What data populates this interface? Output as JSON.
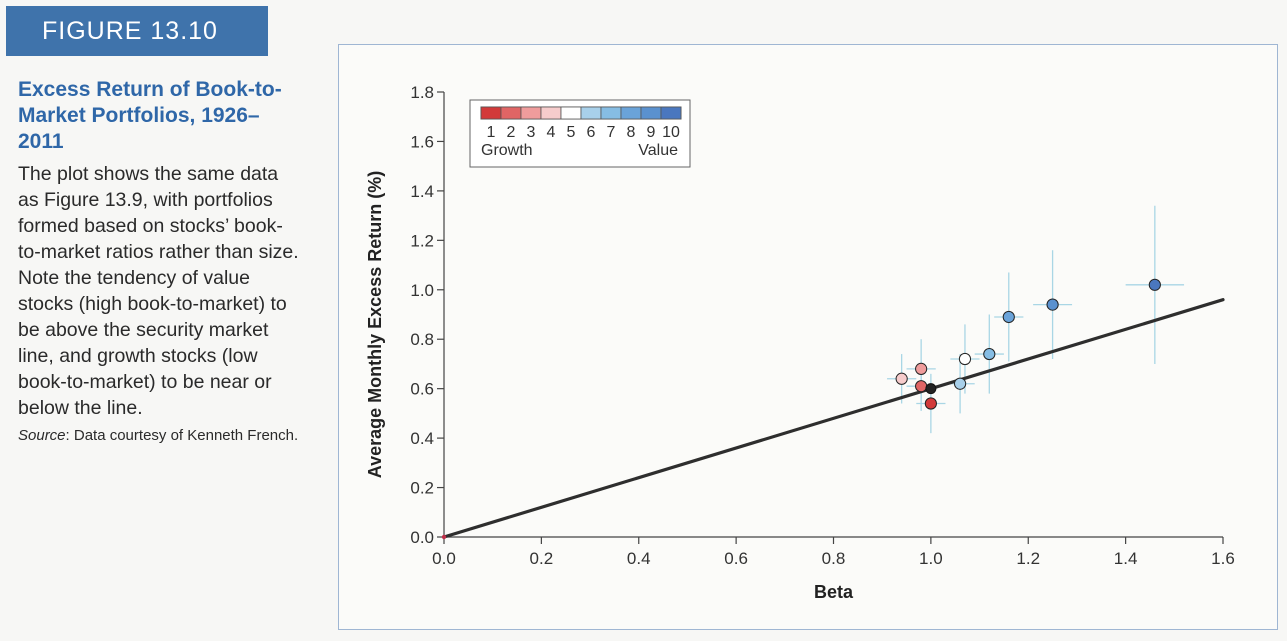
{
  "figure": {
    "label": "FIGURE 13.10",
    "title": "Excess Return of Book-to-Market Portfolios, 1926–2011",
    "caption": "The plot shows the same data as Figure 13.9, with portfolios formed based on stocks’ book-to-market ratios rather than size. Note the tendency of value stocks (high book-to-market) to be above the security market line, and growth stocks (low book-to-market) to be near or below the line.",
    "source_label": "Source",
    "source_text": ": Data courtesy of Kenneth French."
  },
  "chart_data": {
    "type": "scatter",
    "xlabel": "Beta",
    "ylabel": "Average Monthly Excess Return (%)",
    "xlim": [
      0.0,
      1.6
    ],
    "ylim": [
      0.0,
      1.8
    ],
    "xticks": [
      "0.0",
      "0.2",
      "0.4",
      "0.6",
      "0.8",
      "1.0",
      "1.2",
      "1.4",
      "1.6"
    ],
    "yticks": [
      "0.0",
      "0.2",
      "0.4",
      "0.6",
      "0.8",
      "1.0",
      "1.2",
      "1.4",
      "1.6",
      "1.8"
    ],
    "legend": {
      "labels": [
        "1",
        "2",
        "3",
        "4",
        "5",
        "6",
        "7",
        "8",
        "9",
        "10"
      ],
      "left_text": "Growth",
      "right_text": "Value",
      "placement": "top-left",
      "colors": [
        "#d23a3a",
        "#e06565",
        "#ef9c9c",
        "#f6cccc",
        "#ffffff",
        "#a8d0ea",
        "#86bde4",
        "#6aa3d9",
        "#5a91cf",
        "#4a77bf"
      ]
    },
    "security_market_line": {
      "x": [
        0.0,
        1.6
      ],
      "y": [
        0.0,
        0.96
      ]
    },
    "market_portfolio": {
      "x": 1.0,
      "y": 0.6,
      "color": "#222222"
    },
    "series": [
      {
        "portfolio": 1,
        "beta": 1.0,
        "return": 0.54,
        "beta_err": 0.03,
        "return_err": 0.12
      },
      {
        "portfolio": 2,
        "beta": 0.98,
        "return": 0.61,
        "beta_err": 0.03,
        "return_err": 0.1
      },
      {
        "portfolio": 3,
        "beta": 0.98,
        "return": 0.68,
        "beta_err": 0.03,
        "return_err": 0.12
      },
      {
        "portfolio": 4,
        "beta": 0.94,
        "return": 0.64,
        "beta_err": 0.03,
        "return_err": 0.1
      },
      {
        "portfolio": 5,
        "beta": 1.07,
        "return": 0.72,
        "beta_err": 0.03,
        "return_err": 0.14
      },
      {
        "portfolio": 6,
        "beta": 1.06,
        "return": 0.62,
        "beta_err": 0.03,
        "return_err": 0.12
      },
      {
        "portfolio": 7,
        "beta": 1.12,
        "return": 0.74,
        "beta_err": 0.03,
        "return_err": 0.16
      },
      {
        "portfolio": 8,
        "beta": 1.16,
        "return": 0.89,
        "beta_err": 0.03,
        "return_err": 0.18
      },
      {
        "portfolio": 9,
        "beta": 1.25,
        "return": 0.94,
        "beta_err": 0.04,
        "return_err": 0.22
      },
      {
        "portfolio": 10,
        "beta": 1.46,
        "return": 1.02,
        "beta_err": 0.06,
        "return_err": 0.32
      }
    ],
    "grid": false
  }
}
